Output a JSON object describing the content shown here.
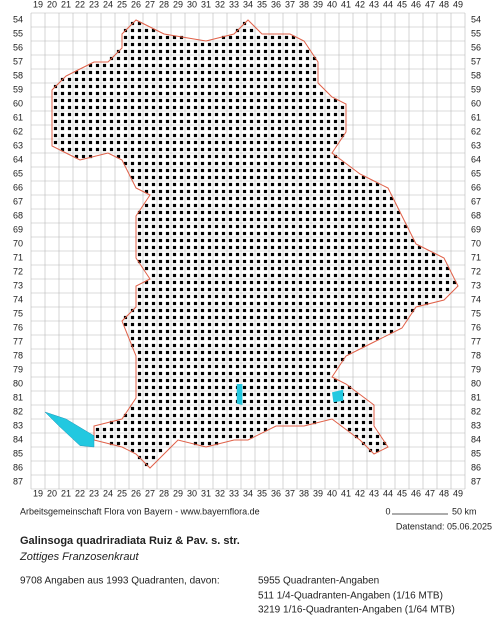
{
  "map": {
    "x_labels": [
      19,
      20,
      21,
      22,
      23,
      24,
      25,
      26,
      27,
      28,
      29,
      30,
      31,
      32,
      33,
      34,
      35,
      36,
      37,
      38,
      39,
      40,
      41,
      42,
      43,
      44,
      45,
      46,
      47,
      48,
      49
    ],
    "y_labels": [
      54,
      55,
      56,
      57,
      58,
      59,
      60,
      61,
      62,
      63,
      64,
      65,
      66,
      67,
      68,
      69,
      70,
      71,
      72,
      73,
      74,
      75,
      76,
      77,
      78,
      79,
      80,
      81,
      82,
      83,
      84,
      85,
      86,
      87
    ],
    "credit": "Arbeitsgemeinschaft Flora von Bayern - www.bayernflora.de",
    "scale_start": "0",
    "scale_end": "50 km",
    "date": "Datenstand: 05.06.2025",
    "title": "Galinsoga quadriradiata Ruiz & Pav. s. str.",
    "subtitle": "Zottiges Franzosenkraut",
    "summary": "9708 Angaben aus 1993 Quadranten, davon:",
    "details": [
      "5955 Quadranten-Angaben",
      "511 1/4-Quadranten-Angaben (1/16 MTB)",
      "3219 1/16-Quadranten-Angaben (1/64 MTB)"
    ]
  }
}
